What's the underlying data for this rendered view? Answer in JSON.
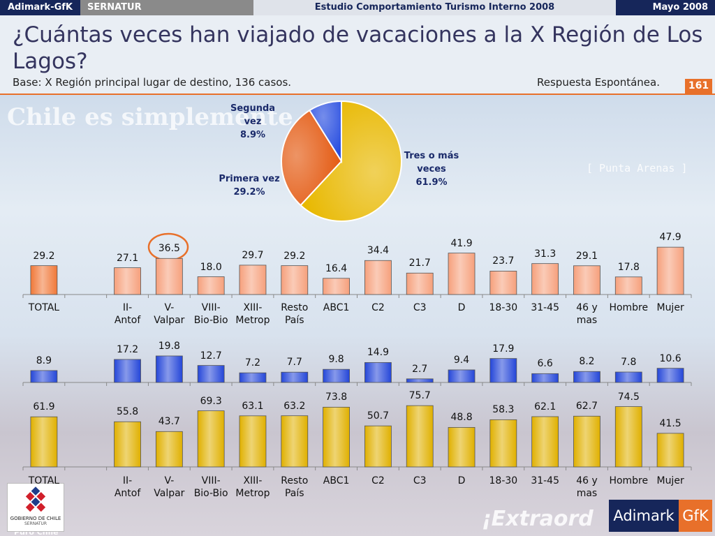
{
  "header": {
    "brand": "Adimark-GfK",
    "client": "SERNATUR",
    "study": "Estudio Comportamiento Turismo Interno 2008",
    "date": "Mayo 2008"
  },
  "title": "¿Cuántas veces han viajado de vacaciones a la X Región de Los Lagos?",
  "subtitle": "Base: X Región principal lugar de destino, 136 casos.",
  "note": "Respuesta Espontánea.",
  "page_number": "161",
  "background_texts": [
    "Chile es simplemente",
    "[ Punta Arenas ]",
    "¡Extraord",
    "Puro Chile"
  ],
  "logos": {
    "government": "GOBIERNO DE CHILE",
    "government_unit": "SERNATUR",
    "company": "Adimark",
    "company_unit": "GfK"
  },
  "chart_data": [
    {
      "type": "pie",
      "categories": [
        "Tres o más\nveces",
        "Primera vez",
        "Segunda\nvez"
      ],
      "values": [
        61.9,
        29.2,
        8.9
      ],
      "value_labels": [
        "61.9%",
        "29.2%",
        "8.9%"
      ],
      "colors": [
        "#e8b800",
        "#e45a12",
        "#2a4fe0"
      ]
    },
    {
      "type": "bar",
      "categories": [
        "TOTAL",
        null,
        "II-\nAntof",
        "V-\nValpar",
        "VIII-\nBio-Bio",
        "XIII-\nMetrop",
        "Resto\nPaís",
        "ABC1",
        "C2",
        "C3",
        "D",
        "18-30",
        "31-45",
        "46 y\nmas",
        "Hombre",
        "Mujer"
      ],
      "values": [
        29.2,
        null,
        27.1,
        36.5,
        18.0,
        29.7,
        29.2,
        16.4,
        34.4,
        21.7,
        41.9,
        23.7,
        31.3,
        29.1,
        17.8,
        47.9
      ],
      "value_labels": [
        "29.2",
        null,
        "27.1",
        "36.5",
        "18.0",
        "29.7",
        "29.2",
        "16.4",
        "34.4",
        "21.7",
        "41.9",
        "23.7",
        "31.3",
        "29.1",
        "17.8",
        "47.9"
      ],
      "colors": [
        "#f07838",
        null,
        "#f6a07c",
        "#f6a07c",
        "#f6a07c",
        "#f6a07c",
        "#f6a07c",
        "#f6a07c",
        "#f6a07c",
        "#f6a07c",
        "#f6a07c",
        "#f6a07c",
        "#f6a07c",
        "#f6a07c",
        "#f6a07c",
        "#f6a07c"
      ],
      "ylim": [
        0,
        60
      ]
    },
    {
      "type": "bar",
      "values": [
        8.9,
        null,
        17.2,
        19.8,
        12.7,
        7.2,
        7.7,
        9.8,
        14.9,
        2.7,
        9.4,
        17.9,
        6.6,
        8.2,
        7.8,
        10.6
      ],
      "color": "#2446d8",
      "ylim": [
        0,
        25
      ]
    },
    {
      "type": "bar",
      "categories": [
        "TOTAL",
        null,
        "II-\nAntof",
        "V-\nValpar",
        "VIII-\nBio-Bio",
        "XIII-\nMetrop",
        "Resto\nPaís",
        "ABC1",
        "C2",
        "C3",
        "D",
        "18-30",
        "31-45",
        "46 y\nmas",
        "Hombre",
        "Mujer"
      ],
      "values": [
        61.9,
        null,
        55.8,
        43.7,
        69.3,
        63.1,
        63.2,
        73.8,
        50.7,
        75.7,
        48.8,
        58.3,
        62.1,
        62.7,
        74.5,
        41.5
      ],
      "color": "#e0b000",
      "ylim": [
        0,
        100
      ]
    }
  ]
}
